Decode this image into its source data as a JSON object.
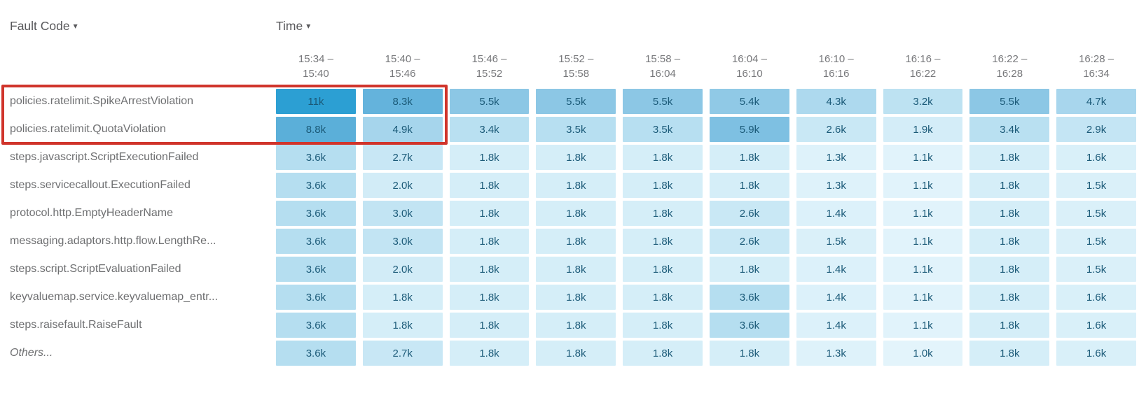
{
  "header": {
    "fault_code_label": "Fault Code",
    "time_label": "Time",
    "dropdown_arrow": "▾"
  },
  "colors": {
    "cell_text": "#1b5a78",
    "row_label_text": "#6e6f71",
    "header_text": "#58585b",
    "column_header_text": "#77787b",
    "highlight_border": "#d0342b",
    "scale_stops": [
      {
        "value": 1000,
        "color": "#e3f4fb"
      },
      {
        "value": 1800,
        "color": "#d5eef8"
      },
      {
        "value": 2700,
        "color": "#c8e7f5"
      },
      {
        "value": 3600,
        "color": "#b5def0"
      },
      {
        "value": 4900,
        "color": "#a6d5ec"
      },
      {
        "value": 5500,
        "color": "#8cc7e5"
      },
      {
        "value": 5900,
        "color": "#7ec0e2"
      },
      {
        "value": 8300,
        "color": "#64b3dc"
      },
      {
        "value": 8800,
        "color": "#5bafd9"
      },
      {
        "value": 11000,
        "color": "#2c9fd3"
      }
    ]
  },
  "highlight": {
    "row_start": 0,
    "row_end": 1,
    "col_end": 1,
    "description": "Red annotation box around the two ratelimit rows spanning the row labels and the first two time columns"
  },
  "chart_data": {
    "type": "heatmap",
    "title": "",
    "x_label": "Time",
    "y_label": "Fault Code",
    "legend": "none",
    "x": [
      "15:34 – 15:40",
      "15:40 – 15:46",
      "15:46 – 15:52",
      "15:52 – 15:58",
      "15:58 – 16:04",
      "16:04 – 16:10",
      "16:10 – 16:16",
      "16:16 – 16:22",
      "16:22 – 16:28",
      "16:28 – 16:34"
    ],
    "y": [
      "policies.ratelimit.SpikeArrestViolation",
      "policies.ratelimit.QuotaViolation",
      "steps.javascript.ScriptExecutionFailed",
      "steps.servicecallout.ExecutionFailed",
      "protocol.http.EmptyHeaderName",
      "messaging.adaptors.http.flow.LengthRe...",
      "steps.script.ScriptEvaluationFailed",
      "keyvaluemap.service.keyvaluemap_entr...",
      "steps.raisefault.RaiseFault",
      "Others..."
    ],
    "values": [
      [
        11000,
        8300,
        5500,
        5500,
        5500,
        5400,
        4300,
        3200,
        5500,
        4700
      ],
      [
        8800,
        4900,
        3400,
        3500,
        3500,
        5900,
        2600,
        1900,
        3400,
        2900
      ],
      [
        3600,
        2700,
        1800,
        1800,
        1800,
        1800,
        1300,
        1100,
        1800,
        1600
      ],
      [
        3600,
        2000,
        1800,
        1800,
        1800,
        1800,
        1300,
        1100,
        1800,
        1500
      ],
      [
        3600,
        3000,
        1800,
        1800,
        1800,
        2600,
        1400,
        1100,
        1800,
        1500
      ],
      [
        3600,
        3000,
        1800,
        1800,
        1800,
        2600,
        1500,
        1100,
        1800,
        1500
      ],
      [
        3600,
        2000,
        1800,
        1800,
        1800,
        1800,
        1400,
        1100,
        1800,
        1500
      ],
      [
        3600,
        1800,
        1800,
        1800,
        1800,
        3600,
        1400,
        1100,
        1800,
        1600
      ],
      [
        3600,
        1800,
        1800,
        1800,
        1800,
        3600,
        1400,
        1100,
        1800,
        1600
      ],
      [
        3600,
        2700,
        1800,
        1800,
        1800,
        1800,
        1300,
        1000,
        1800,
        1600
      ]
    ],
    "display": [
      [
        "11k",
        "8.3k",
        "5.5k",
        "5.5k",
        "5.5k",
        "5.4k",
        "4.3k",
        "3.2k",
        "5.5k",
        "4.7k"
      ],
      [
        "8.8k",
        "4.9k",
        "3.4k",
        "3.5k",
        "3.5k",
        "5.9k",
        "2.6k",
        "1.9k",
        "3.4k",
        "2.9k"
      ],
      [
        "3.6k",
        "2.7k",
        "1.8k",
        "1.8k",
        "1.8k",
        "1.8k",
        "1.3k",
        "1.1k",
        "1.8k",
        "1.6k"
      ],
      [
        "3.6k",
        "2.0k",
        "1.8k",
        "1.8k",
        "1.8k",
        "1.8k",
        "1.3k",
        "1.1k",
        "1.8k",
        "1.5k"
      ],
      [
        "3.6k",
        "3.0k",
        "1.8k",
        "1.8k",
        "1.8k",
        "2.6k",
        "1.4k",
        "1.1k",
        "1.8k",
        "1.5k"
      ],
      [
        "3.6k",
        "3.0k",
        "1.8k",
        "1.8k",
        "1.8k",
        "2.6k",
        "1.5k",
        "1.1k",
        "1.8k",
        "1.5k"
      ],
      [
        "3.6k",
        "2.0k",
        "1.8k",
        "1.8k",
        "1.8k",
        "1.8k",
        "1.4k",
        "1.1k",
        "1.8k",
        "1.5k"
      ],
      [
        "3.6k",
        "1.8k",
        "1.8k",
        "1.8k",
        "1.8k",
        "3.6k",
        "1.4k",
        "1.1k",
        "1.8k",
        "1.6k"
      ],
      [
        "3.6k",
        "1.8k",
        "1.8k",
        "1.8k",
        "1.8k",
        "3.6k",
        "1.4k",
        "1.1k",
        "1.8k",
        "1.6k"
      ],
      [
        "3.6k",
        "2.7k",
        "1.8k",
        "1.8k",
        "1.8k",
        "1.8k",
        "1.3k",
        "1.0k",
        "1.8k",
        "1.6k"
      ]
    ]
  }
}
